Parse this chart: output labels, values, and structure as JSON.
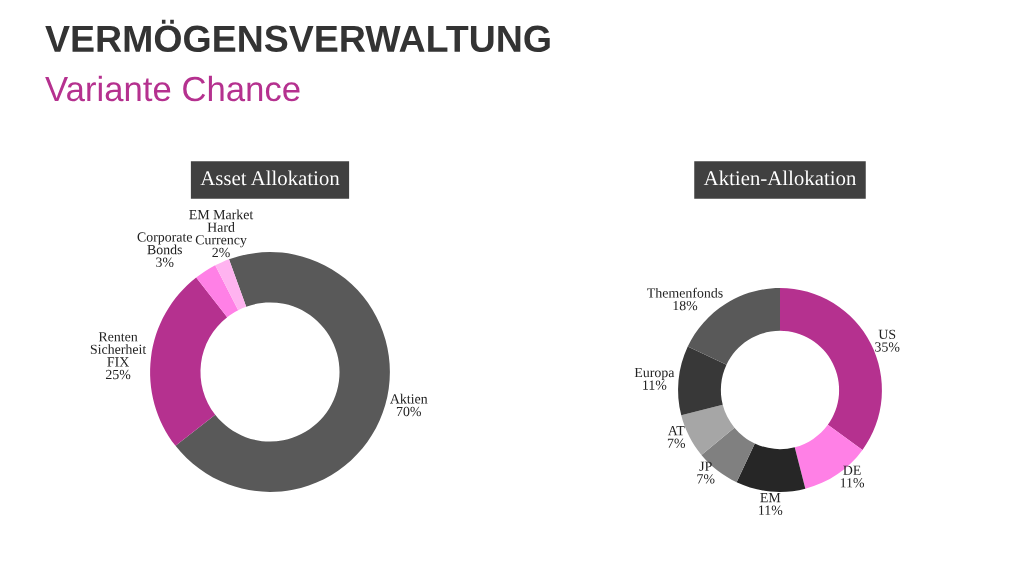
{
  "chart_data": [
    {
      "type": "donut",
      "title": "Asset Allokation",
      "annotations": [
        "VERMÖGENSVERWALTUNG",
        "Variante Chance"
      ],
      "categories": [
        "Aktien",
        "Renten\nSicherheit\nFIX",
        "Corporate\nBonds",
        "EM Market\nHard\nCurrency"
      ],
      "values": [
        70,
        25,
        3,
        2
      ],
      "colors": [
        "#595959",
        "#b5318f",
        "#ff80e6",
        "#ffb3f0"
      ],
      "value_labels": [
        "70%",
        "25%",
        "3%",
        "2%"
      ]
    },
    {
      "type": "donut",
      "title": "Aktien-Allokation",
      "categories": [
        "US",
        "DE",
        "EM",
        "JP",
        "AT",
        "Europa",
        "Themenfonds"
      ],
      "values": [
        35,
        11,
        11,
        7,
        7,
        11,
        18
      ],
      "colors": [
        "#b5318f",
        "#ff80e6",
        "#262626",
        "#808080",
        "#a6a6a6",
        "#383838",
        "#595959"
      ],
      "value_labels": [
        "35%",
        "11%",
        "11%",
        "7%",
        "7%",
        "11%",
        "18%"
      ]
    }
  ]
}
